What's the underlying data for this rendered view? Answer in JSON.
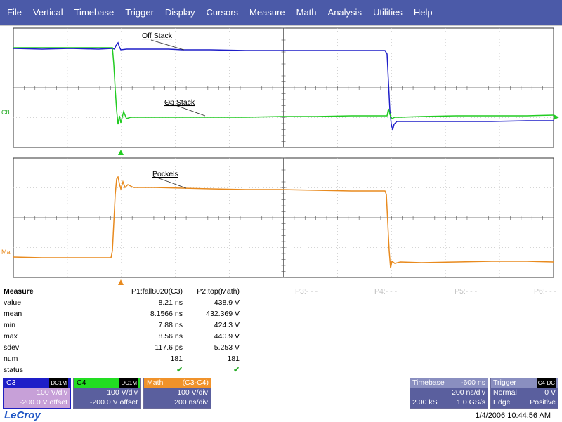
{
  "menu": [
    "File",
    "Vertical",
    "Timebase",
    "Trigger",
    "Display",
    "Cursors",
    "Measure",
    "Math",
    "Analysis",
    "Utilities",
    "Help"
  ],
  "traces": {
    "top": {
      "marker_label": "C8",
      "labels": {
        "off_stack": "Off Stack",
        "on_stack": "On Stack"
      },
      "colors": {
        "off_stack": "#1e1ec8",
        "on_stack": "#22cc22"
      }
    },
    "bottom": {
      "marker_label": "Ma",
      "labels": {
        "pockels": "Pockels"
      },
      "colors": {
        "pockels": "#e88a1e"
      }
    }
  },
  "measure": {
    "header": {
      "label": "Measure",
      "p1": "P1:fall8020(C3)",
      "p2": "P2:top(Math)",
      "p3": "P3:- - -",
      "p4": "P4:- - -",
      "p5": "P5:- - -",
      "p6": "P6:- - -"
    },
    "rows": [
      {
        "label": "value",
        "p1": "8.21 ns",
        "p2": "438.9 V"
      },
      {
        "label": "mean",
        "p1": "8.1566 ns",
        "p2": "432.369 V"
      },
      {
        "label": "min",
        "p1": "7.88 ns",
        "p2": "424.3 V"
      },
      {
        "label": "max",
        "p1": "8.56 ns",
        "p2": "440.9 V"
      },
      {
        "label": "sdev",
        "p1": "117.6 ps",
        "p2": "5.253 V"
      },
      {
        "label": "num",
        "p1": "181",
        "p2": "181"
      },
      {
        "label": "status",
        "p1": "✔",
        "p2": "✔"
      }
    ]
  },
  "channels": {
    "c3": {
      "name": "C3",
      "coupling": "DC1M",
      "scale": "100 V/div",
      "offset": "-200.0 V offset"
    },
    "c4": {
      "name": "C4",
      "coupling": "DC1M",
      "scale": "100 V/div",
      "offset": "-200.0 V offset"
    },
    "math": {
      "name": "Math",
      "source": "(C3-C4)",
      "scale": "100 V/div",
      "time": "200 ns/div"
    }
  },
  "timebase": {
    "title": "Timebase",
    "delay": "-600 ns",
    "per_div": "200 ns/div",
    "samples": "2.00 kS",
    "rate": "1.0 GS/s"
  },
  "trigger": {
    "title": "Trigger",
    "src": "C4",
    "coupling": "DC",
    "mode": "Normal",
    "level": "0 V",
    "type": "Edge",
    "slope": "Positive"
  },
  "footer": {
    "brand": "LeCroy",
    "datetime": "1/4/2006 10:44:56 AM"
  },
  "colors": {
    "menubar": "#4b5aa8",
    "c3": "#1e1ec8",
    "c4": "#22cc22",
    "math": "#e88a1e",
    "panel": "#5a5f9e"
  }
}
